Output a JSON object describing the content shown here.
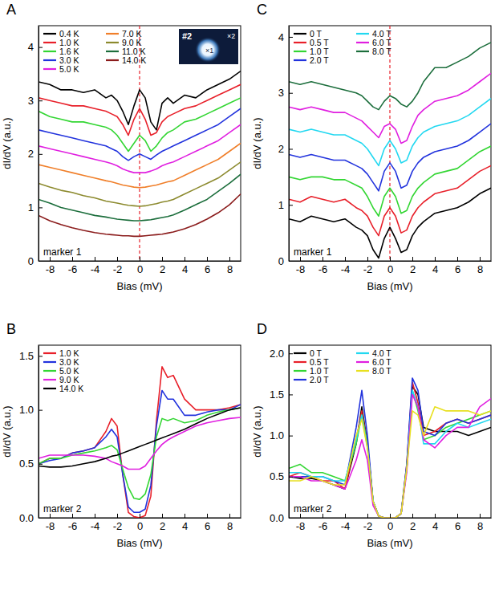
{
  "chart_data": [
    {
      "type": "line",
      "title": "A",
      "x_label": "Bias (mV)",
      "y_label": "dI/dV (a.u.)",
      "xlim": [
        -9,
        9
      ],
      "ylim": [
        0,
        4.4
      ],
      "xticks": [
        -8,
        -6,
        -4,
        -2,
        0,
        2,
        4,
        6,
        8
      ],
      "yticks": [
        0,
        1,
        2,
        3,
        4
      ],
      "legend": "upper left",
      "vline": 0,
      "annotations": [
        "marker 1"
      ],
      "inset_labels": [
        "#2",
        "×1",
        "×2"
      ],
      "x": [
        -9,
        -8,
        -7,
        -6,
        -5,
        -4,
        -3,
        -2.5,
        -2,
        -1.5,
        -1,
        -0.5,
        0,
        0.5,
        1,
        1.5,
        2,
        2.5,
        3,
        4,
        5,
        6,
        7,
        8,
        9
      ],
      "series": [
        {
          "name": "0.4 K",
          "color": "#000000",
          "values": [
            3.35,
            3.3,
            3.2,
            3.2,
            3.15,
            3.2,
            3.05,
            3.1,
            3.0,
            2.8,
            2.55,
            2.9,
            3.2,
            3.05,
            2.6,
            2.45,
            2.95,
            3.05,
            2.95,
            3.1,
            3.05,
            3.2,
            3.3,
            3.4,
            3.55
          ]
        },
        {
          "name": "1.0 K",
          "color": "#e8202a",
          "values": [
            3.05,
            3.0,
            2.95,
            2.9,
            2.9,
            2.85,
            2.8,
            2.75,
            2.7,
            2.55,
            2.35,
            2.65,
            2.85,
            2.65,
            2.35,
            2.4,
            2.6,
            2.7,
            2.75,
            2.85,
            2.9,
            3.0,
            3.1,
            3.2,
            3.3
          ]
        },
        {
          "name": "1.6 K",
          "color": "#33d633",
          "values": [
            2.8,
            2.7,
            2.65,
            2.6,
            2.6,
            2.55,
            2.5,
            2.45,
            2.35,
            2.2,
            2.05,
            2.2,
            2.35,
            2.25,
            2.05,
            2.15,
            2.3,
            2.4,
            2.45,
            2.6,
            2.65,
            2.75,
            2.85,
            2.95,
            3.05
          ]
        },
        {
          "name": "3.0 K",
          "color": "#2233dd",
          "values": [
            2.45,
            2.4,
            2.35,
            2.3,
            2.25,
            2.2,
            2.15,
            2.1,
            2.05,
            1.95,
            1.88,
            1.95,
            2.0,
            1.95,
            1.9,
            1.98,
            2.05,
            2.1,
            2.15,
            2.25,
            2.35,
            2.45,
            2.55,
            2.7,
            2.85
          ]
        },
        {
          "name": "5.0 K",
          "color": "#e01fe0",
          "values": [
            2.15,
            2.1,
            2.05,
            2.0,
            1.95,
            1.9,
            1.85,
            1.82,
            1.78,
            1.72,
            1.68,
            1.65,
            1.65,
            1.65,
            1.68,
            1.72,
            1.78,
            1.82,
            1.85,
            1.95,
            2.05,
            2.15,
            2.25,
            2.4,
            2.55
          ]
        },
        {
          "name": "7.0 K",
          "color": "#f07f2a",
          "values": [
            1.8,
            1.75,
            1.7,
            1.65,
            1.6,
            1.55,
            1.5,
            1.48,
            1.45,
            1.42,
            1.4,
            1.38,
            1.37,
            1.38,
            1.4,
            1.42,
            1.45,
            1.48,
            1.5,
            1.6,
            1.7,
            1.8,
            1.9,
            2.05,
            2.2
          ]
        },
        {
          "name": "9.0 K",
          "color": "#8c8a2e",
          "values": [
            1.45,
            1.38,
            1.32,
            1.28,
            1.22,
            1.18,
            1.12,
            1.1,
            1.08,
            1.06,
            1.04,
            1.03,
            1.02,
            1.03,
            1.05,
            1.07,
            1.1,
            1.12,
            1.15,
            1.25,
            1.35,
            1.45,
            1.55,
            1.7,
            1.85
          ]
        },
        {
          "name": "11.0 K",
          "color": "#1c6e3c",
          "values": [
            1.15,
            1.08,
            1.0,
            0.95,
            0.9,
            0.85,
            0.82,
            0.8,
            0.78,
            0.77,
            0.76,
            0.75,
            0.75,
            0.76,
            0.77,
            0.79,
            0.81,
            0.83,
            0.86,
            0.95,
            1.05,
            1.15,
            1.3,
            1.45,
            1.62
          ]
        },
        {
          "name": "14.0 K",
          "color": "#8b1c1c",
          "values": [
            0.85,
            0.75,
            0.68,
            0.62,
            0.57,
            0.53,
            0.5,
            0.49,
            0.48,
            0.47,
            0.47,
            0.46,
            0.46,
            0.47,
            0.48,
            0.49,
            0.5,
            0.52,
            0.54,
            0.6,
            0.68,
            0.78,
            0.9,
            1.05,
            1.25
          ]
        }
      ]
    },
    {
      "type": "line",
      "title": "B",
      "x_label": "Bias (mV)",
      "y_label": "dI/dV (a.u.)",
      "xlim": [
        -9,
        9
      ],
      "ylim": [
        0,
        1.6
      ],
      "xticks": [
        -8,
        -6,
        -4,
        -2,
        0,
        2,
        4,
        6,
        8
      ],
      "yticks": [
        {
          "value": 0,
          "label": "0.0"
        },
        {
          "value": 0.5,
          "label": "0.5"
        },
        {
          "value": 1,
          "label": "1.0"
        },
        {
          "value": 1.5,
          "label": "1.5"
        }
      ],
      "legend": "upper left",
      "annotations": [
        "marker 2"
      ],
      "x": [
        -9,
        -8,
        -7,
        -6,
        -5,
        -4,
        -3,
        -2.5,
        -2,
        -1.5,
        -1,
        -0.5,
        0,
        0.5,
        1,
        1.5,
        2,
        2.5,
        3,
        4,
        5,
        6,
        7,
        8,
        9
      ],
      "series": [
        {
          "name": "1.0 K",
          "color": "#e8202a",
          "values": [
            0.5,
            0.55,
            0.55,
            0.6,
            0.62,
            0.65,
            0.8,
            0.92,
            0.85,
            0.4,
            0.05,
            0.01,
            0.0,
            0.02,
            0.2,
            0.9,
            1.4,
            1.3,
            1.32,
            1.1,
            1.0,
            1.0,
            1.0,
            1.02,
            1.05
          ]
        },
        {
          "name": "3.0 K",
          "color": "#2233dd",
          "values": [
            0.5,
            0.53,
            0.55,
            0.6,
            0.62,
            0.65,
            0.75,
            0.82,
            0.75,
            0.4,
            0.1,
            0.05,
            0.05,
            0.08,
            0.3,
            0.85,
            1.18,
            1.1,
            1.1,
            0.95,
            0.95,
            0.98,
            1.0,
            1.0,
            1.05
          ]
        },
        {
          "name": "5.0 K",
          "color": "#33d633",
          "values": [
            0.5,
            0.55,
            0.55,
            0.58,
            0.6,
            0.62,
            0.65,
            0.67,
            0.63,
            0.45,
            0.28,
            0.18,
            0.17,
            0.22,
            0.4,
            0.75,
            0.92,
            0.9,
            0.92,
            0.88,
            0.9,
            0.95,
            0.98,
            1.0,
            1.02
          ]
        },
        {
          "name": "9.0 K",
          "color": "#e01fe0",
          "values": [
            0.55,
            0.58,
            0.58,
            0.58,
            0.58,
            0.57,
            0.55,
            0.52,
            0.5,
            0.48,
            0.45,
            0.45,
            0.45,
            0.48,
            0.55,
            0.62,
            0.68,
            0.72,
            0.75,
            0.8,
            0.85,
            0.88,
            0.9,
            0.92,
            0.93
          ]
        },
        {
          "name": "14.0 K",
          "color": "#000000",
          "values": [
            0.48,
            0.47,
            0.47,
            0.48,
            0.5,
            0.52,
            0.55,
            0.57,
            0.58,
            0.6,
            0.62,
            0.64,
            0.66,
            0.68,
            0.7,
            0.72,
            0.74,
            0.76,
            0.78,
            0.82,
            0.87,
            0.92,
            0.96,
            1.0,
            1.02
          ]
        }
      ]
    },
    {
      "type": "line",
      "title": "C",
      "x_label": "Bias (mV)",
      "y_label": "dI/dV (a.u.)",
      "xlim": [
        -9,
        9
      ],
      "ylim": [
        0,
        4.2
      ],
      "xticks": [
        -8,
        -6,
        -4,
        -2,
        0,
        2,
        4,
        6,
        8
      ],
      "yticks": [
        0,
        1,
        2,
        3,
        4
      ],
      "legend": "upper left",
      "vline": 0,
      "annotations": [
        "marker 1"
      ],
      "x": [
        -9,
        -8,
        -7,
        -6,
        -5,
        -4,
        -3,
        -2.5,
        -2,
        -1.5,
        -1,
        -0.5,
        0,
        0.5,
        1,
        1.5,
        2,
        2.5,
        3,
        4,
        5,
        6,
        7,
        8,
        9
      ],
      "series": [
        {
          "name": "0 T",
          "color": "#000000",
          "values": [
            0.75,
            0.7,
            0.8,
            0.75,
            0.7,
            0.75,
            0.6,
            0.55,
            0.45,
            0.2,
            0.05,
            0.4,
            0.6,
            0.4,
            0.15,
            0.2,
            0.45,
            0.6,
            0.7,
            0.85,
            0.9,
            0.95,
            1.05,
            1.2,
            1.3
          ]
        },
        {
          "name": "0.5 T",
          "color": "#e8202a",
          "values": [
            1.1,
            1.05,
            1.15,
            1.1,
            1.05,
            1.1,
            0.95,
            0.9,
            0.8,
            0.6,
            0.45,
            0.8,
            0.95,
            0.8,
            0.5,
            0.55,
            0.8,
            0.95,
            1.05,
            1.2,
            1.25,
            1.3,
            1.45,
            1.6,
            1.7
          ]
        },
        {
          "name": "1.0 T",
          "color": "#33d633",
          "values": [
            1.5,
            1.45,
            1.5,
            1.5,
            1.45,
            1.45,
            1.35,
            1.3,
            1.15,
            0.95,
            0.8,
            1.15,
            1.3,
            1.15,
            0.85,
            0.9,
            1.15,
            1.3,
            1.4,
            1.55,
            1.6,
            1.65,
            1.8,
            1.95,
            2.05
          ]
        },
        {
          "name": "2.0 T",
          "color": "#2233dd",
          "values": [
            1.9,
            1.85,
            1.9,
            1.85,
            1.8,
            1.8,
            1.7,
            1.65,
            1.55,
            1.4,
            1.25,
            1.6,
            1.75,
            1.6,
            1.3,
            1.35,
            1.6,
            1.75,
            1.85,
            1.95,
            2.0,
            2.05,
            2.15,
            2.3,
            2.45
          ]
        },
        {
          "name": "4.0 T",
          "color": "#22d8f0",
          "values": [
            2.35,
            2.3,
            2.35,
            2.3,
            2.25,
            2.25,
            2.15,
            2.1,
            2.0,
            1.85,
            1.7,
            2.0,
            2.15,
            2.0,
            1.75,
            1.8,
            2.05,
            2.2,
            2.3,
            2.4,
            2.45,
            2.5,
            2.6,
            2.75,
            2.9
          ]
        },
        {
          "name": "6.0 T",
          "color": "#e01fe0",
          "values": [
            2.75,
            2.7,
            2.75,
            2.7,
            2.65,
            2.65,
            2.55,
            2.5,
            2.4,
            2.3,
            2.2,
            2.4,
            2.45,
            2.35,
            2.1,
            2.15,
            2.4,
            2.6,
            2.7,
            2.85,
            2.9,
            2.95,
            3.05,
            3.2,
            3.35
          ]
        },
        {
          "name": "8.0 T",
          "color": "#1c6e3c",
          "values": [
            3.2,
            3.15,
            3.2,
            3.15,
            3.1,
            3.05,
            3.0,
            2.95,
            2.85,
            2.75,
            2.7,
            2.85,
            2.95,
            2.9,
            2.8,
            2.75,
            2.85,
            3.0,
            3.2,
            3.45,
            3.45,
            3.55,
            3.65,
            3.8,
            3.9
          ]
        }
      ]
    },
    {
      "type": "line",
      "title": "D",
      "x_label": "Bias (mV)",
      "y_label": "dI/dV (a.u.)",
      "xlim": [
        -9,
        9
      ],
      "ylim": [
        0,
        2.1
      ],
      "xticks": [
        -8,
        -6,
        -4,
        -2,
        0,
        2,
        4,
        6,
        8
      ],
      "yticks": [
        {
          "value": 0,
          "label": "0.0"
        },
        {
          "value": 0.5,
          "label": "0.5"
        },
        {
          "value": 1,
          "label": "1.0"
        },
        {
          "value": 1.5,
          "label": "1.5"
        },
        {
          "value": 2,
          "label": "2.0"
        }
      ],
      "legend": "upper left",
      "annotations": [
        "marker 2"
      ],
      "x": [
        -9,
        -8,
        -7,
        -6,
        -5,
        -4,
        -3,
        -2.5,
        -2,
        -1.5,
        -1,
        -0.5,
        0,
        0.5,
        1,
        1.5,
        2,
        2.5,
        3,
        4,
        5,
        6,
        7,
        8,
        9
      ],
      "series": [
        {
          "name": "0 T",
          "color": "#000000",
          "values": [
            0.5,
            0.48,
            0.48,
            0.45,
            0.4,
            0.35,
            0.9,
            1.35,
            0.9,
            0.2,
            0.02,
            0.0,
            0.0,
            0.0,
            0.05,
            0.6,
            1.6,
            1.5,
            1.1,
            1.05,
            1.05,
            1.05,
            1.0,
            1.05,
            1.1
          ]
        },
        {
          "name": "0.5 T",
          "color": "#e8202a",
          "values": [
            0.5,
            0.55,
            0.5,
            0.45,
            0.45,
            0.35,
            0.95,
            1.3,
            0.9,
            0.2,
            0.02,
            0.0,
            0.0,
            0.0,
            0.05,
            0.65,
            1.65,
            1.4,
            1.0,
            1.05,
            1.15,
            1.2,
            1.15,
            1.2,
            1.25
          ]
        },
        {
          "name": "1.0 T",
          "color": "#33d633",
          "values": [
            0.6,
            0.65,
            0.55,
            0.55,
            0.5,
            0.45,
            0.9,
            1.25,
            0.9,
            0.2,
            0.02,
            0.0,
            0.0,
            0.0,
            0.05,
            0.6,
            1.55,
            1.3,
            0.95,
            1.0,
            1.1,
            1.15,
            1.2,
            1.25,
            1.3
          ]
        },
        {
          "name": "2.0 T",
          "color": "#2233dd",
          "values": [
            0.5,
            0.5,
            0.5,
            0.5,
            0.45,
            0.4,
            1.1,
            1.55,
            1.0,
            0.2,
            0.02,
            0.0,
            0.0,
            0.0,
            0.05,
            0.65,
            1.7,
            1.55,
            1.05,
            1.0,
            1.15,
            1.2,
            1.15,
            1.2,
            1.25
          ]
        },
        {
          "name": "4.0 T",
          "color": "#22d8f0",
          "values": [
            0.55,
            0.55,
            0.5,
            0.5,
            0.45,
            0.45,
            0.95,
            1.25,
            0.85,
            0.2,
            0.02,
            0.0,
            0.0,
            0.0,
            0.05,
            0.6,
            1.55,
            1.35,
            0.9,
            0.9,
            1.05,
            1.15,
            1.1,
            1.15,
            1.2
          ]
        },
        {
          "name": "6.0 T",
          "color": "#e01fe0",
          "values": [
            0.5,
            0.5,
            0.45,
            0.45,
            0.4,
            0.35,
            0.7,
            0.95,
            0.7,
            0.15,
            0.02,
            0.0,
            0.0,
            0.0,
            0.05,
            0.55,
            1.5,
            1.35,
            0.95,
            0.85,
            1.0,
            1.1,
            1.1,
            1.35,
            1.45
          ]
        },
        {
          "name": "8.0 T",
          "color": "#e8e020",
          "values": [
            0.45,
            0.45,
            0.5,
            0.45,
            0.4,
            0.4,
            1.0,
            1.2,
            0.85,
            0.2,
            0.02,
            0.0,
            0.0,
            0.0,
            0.05,
            0.6,
            1.3,
            1.25,
            1.0,
            1.35,
            1.3,
            1.3,
            1.3,
            1.25,
            1.3
          ]
        }
      ]
    }
  ]
}
